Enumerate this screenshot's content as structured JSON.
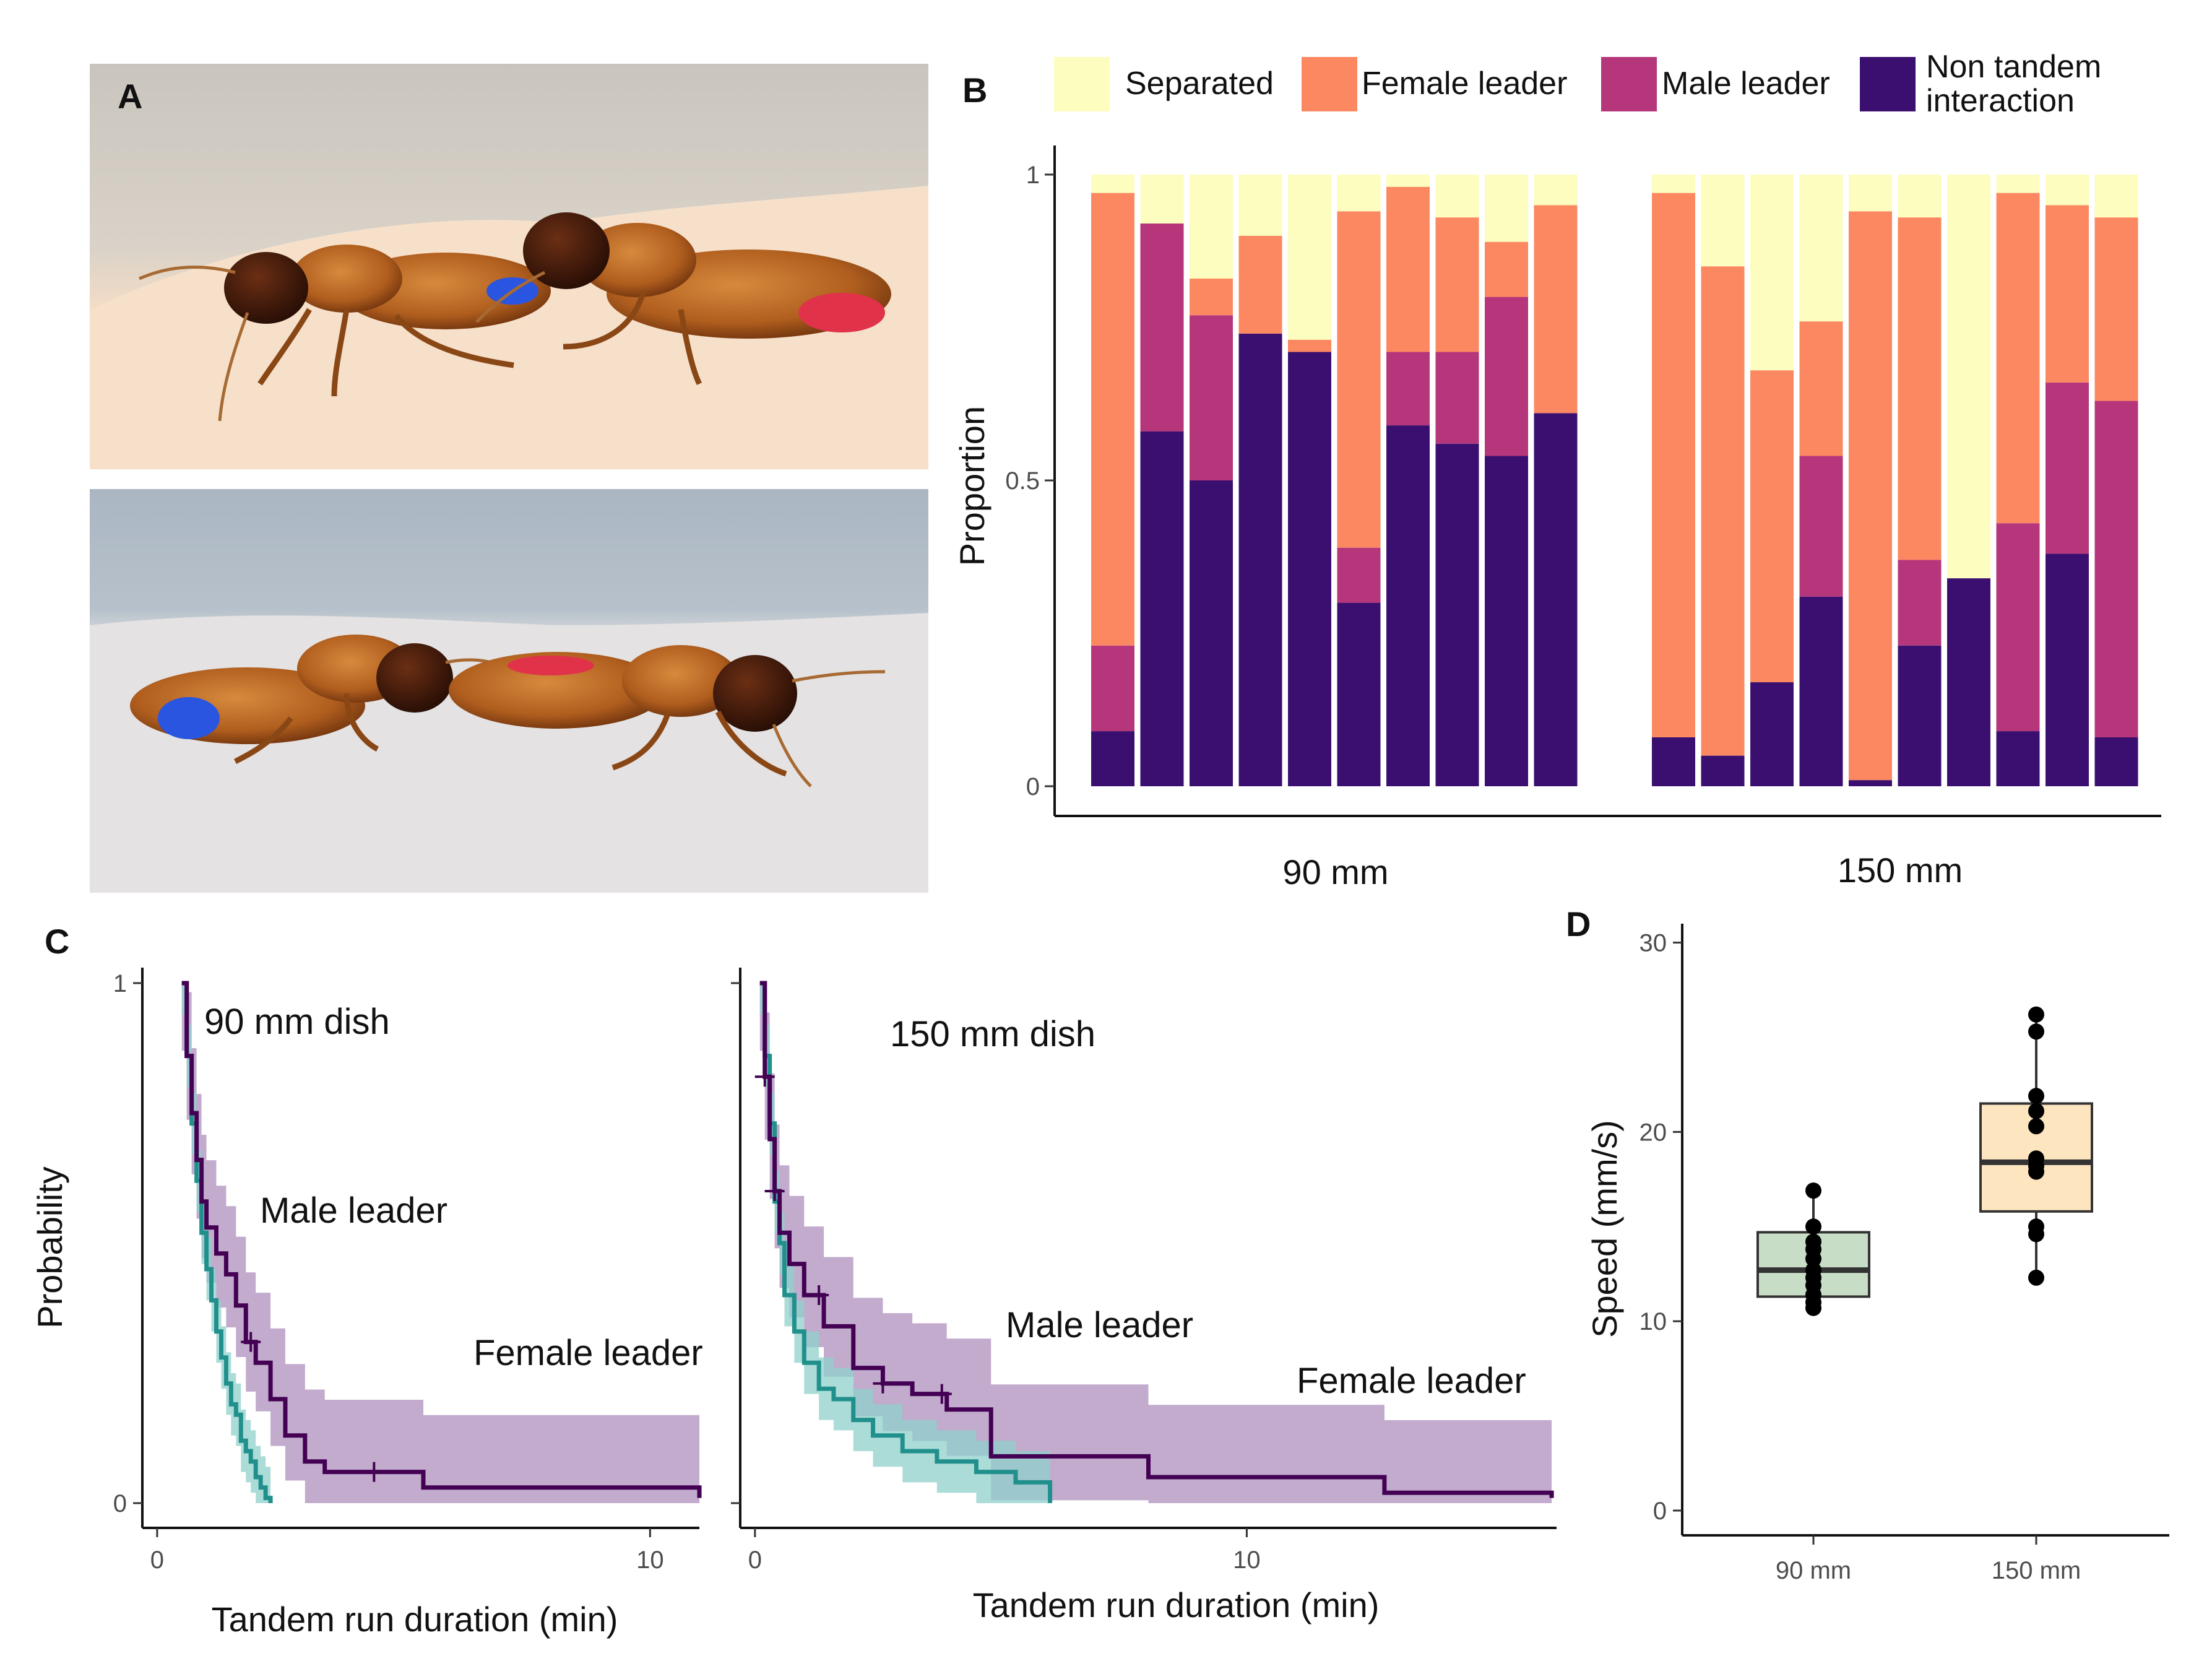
{
  "panels": {
    "A": {
      "letter": "A",
      "photos": [
        "termite-pair-photo",
        "termite-pair-photo"
      ]
    },
    "B": {
      "letter": "B"
    },
    "C": {
      "letter": "C"
    },
    "D": {
      "letter": "D"
    }
  },
  "colors": {
    "separated": "#FCFDBF",
    "female_leader": "#FB8861",
    "male_leader": "#B5367A",
    "non_tandem": "#3B0F70",
    "km_male": "#21908C",
    "km_male_band": "#8FD0CB",
    "km_female": "#440154",
    "km_female_band": "#B79CC4",
    "box_90": "#C7DDC5",
    "box_150": "#FDE5C0"
  },
  "chart_data": [
    {
      "id": "B",
      "type": "bar",
      "stacked": true,
      "ylabel": "Proportion",
      "yticks": [
        "0",
        "0.5",
        "1"
      ],
      "ylim": [
        0,
        1
      ],
      "legend": [
        "Separated",
        "Female leader",
        "Male leader",
        "Non tandem interaction"
      ],
      "legend_lines": [
        [
          "Separated"
        ],
        [
          "Female leader"
        ],
        [
          "Male leader"
        ],
        [
          "Non tandem",
          "interaction"
        ]
      ],
      "groups": [
        "90 mm",
        "150 mm"
      ],
      "series": [
        {
          "name": "Non tandem interaction",
          "values": [
            0.09,
            0.58,
            0.5,
            0.74,
            0.71,
            0.3,
            0.59,
            0.56,
            0.54,
            0.61,
            0.08,
            0.05,
            0.17,
            0.31,
            0.01,
            0.23,
            0.34,
            0.09,
            0.38,
            0.08
          ]
        },
        {
          "name": "Male leader",
          "values": [
            0.14,
            0.34,
            0.27,
            0.0,
            0.0,
            0.09,
            0.12,
            0.15,
            0.26,
            0.0,
            0.0,
            0.0,
            0.0,
            0.23,
            0.0,
            0.14,
            0.0,
            0.34,
            0.28,
            0.55
          ]
        },
        {
          "name": "Female leader",
          "values": [
            0.74,
            0.0,
            0.06,
            0.16,
            0.02,
            0.55,
            0.27,
            0.22,
            0.09,
            0.34,
            0.89,
            0.8,
            0.51,
            0.22,
            0.93,
            0.56,
            0.0,
            0.54,
            0.29,
            0.3
          ]
        },
        {
          "name": "Separated",
          "values": [
            0.03,
            0.08,
            0.17,
            0.1,
            0.27,
            0.06,
            0.02,
            0.07,
            0.11,
            0.05,
            0.03,
            0.15,
            0.32,
            0.24,
            0.06,
            0.07,
            0.66,
            0.03,
            0.05,
            0.07
          ]
        }
      ]
    },
    {
      "id": "C1",
      "type": "line",
      "subtitle": "90 mm dish",
      "xlabel": "Tandem run duration (min)",
      "ylabel": "Probability",
      "xlim": [
        -0.3,
        11
      ],
      "ylim": [
        0,
        1
      ],
      "xticks": [
        "0",
        "10"
      ],
      "yticks": [
        "0",
        "1"
      ],
      "series": [
        {
          "name": "Male leader",
          "x": [
            0.5,
            0.6,
            0.7,
            0.8,
            0.9,
            1.0,
            1.1,
            1.2,
            1.3,
            1.4,
            1.5,
            1.6,
            1.7,
            1.8,
            1.9,
            2.0,
            2.1,
            2.2,
            2.3
          ],
          "y": [
            1.0,
            0.86,
            0.73,
            0.62,
            0.52,
            0.45,
            0.39,
            0.33,
            0.28,
            0.23,
            0.19,
            0.17,
            0.12,
            0.1,
            0.08,
            0.05,
            0.03,
            0.01,
            0.0
          ]
        },
        {
          "name": "Female leader",
          "x": [
            0.5,
            0.6,
            0.7,
            0.8,
            0.9,
            1.0,
            1.2,
            1.4,
            1.6,
            1.8,
            2.0,
            2.3,
            2.6,
            3.0,
            3.4,
            4.5,
            5.4,
            11.0
          ],
          "y": [
            1.0,
            0.86,
            0.75,
            0.66,
            0.58,
            0.53,
            0.48,
            0.44,
            0.38,
            0.31,
            0.27,
            0.2,
            0.13,
            0.08,
            0.06,
            0.06,
            0.03,
            0.01
          ]
        }
      ],
      "censored": [
        {
          "series": "Female leader",
          "x": [
            1.9,
            4.4
          ]
        }
      ]
    },
    {
      "id": "C2",
      "type": "line",
      "subtitle": "150 mm dish",
      "xlabel": "Tandem run duration (min)",
      "ylabel": "Probability",
      "xlim": [
        -0.3,
        16.3
      ],
      "ylim": [
        0,
        1
      ],
      "xticks": [
        "0",
        "10"
      ],
      "series": [
        {
          "name": "Male leader",
          "x": [
            0.1,
            0.2,
            0.3,
            0.4,
            0.5,
            0.6,
            0.8,
            1.0,
            1.3,
            1.6,
            2.0,
            2.4,
            3.0,
            3.7,
            4.5,
            5.3,
            6.0
          ],
          "y": [
            1.0,
            0.86,
            0.73,
            0.58,
            0.5,
            0.4,
            0.33,
            0.27,
            0.22,
            0.2,
            0.16,
            0.13,
            0.1,
            0.08,
            0.06,
            0.04,
            0.0
          ]
        },
        {
          "name": "Female leader",
          "x": [
            0.1,
            0.2,
            0.3,
            0.4,
            0.5,
            0.7,
            1.0,
            1.4,
            2.0,
            2.6,
            3.2,
            3.9,
            4.8,
            8.0,
            12.8,
            16.2
          ],
          "y": [
            1.0,
            0.82,
            0.7,
            0.6,
            0.52,
            0.46,
            0.4,
            0.34,
            0.26,
            0.23,
            0.21,
            0.18,
            0.09,
            0.05,
            0.02,
            0.01
          ]
        }
      ],
      "censored": [
        {
          "series": "Female leader",
          "x": [
            0.2,
            0.4,
            1.3,
            2.6,
            3.8
          ]
        }
      ]
    },
    {
      "id": "D",
      "type": "box",
      "ylabel": "Speed (mm/s)",
      "ylim": [
        0,
        31
      ],
      "yticks": [
        "0",
        "10",
        "20",
        "30"
      ],
      "categories": [
        "90 mm",
        "150 mm"
      ],
      "boxes": [
        {
          "name": "90 mm",
          "min": 10.7,
          "q1": 11.3,
          "median": 12.7,
          "q3": 14.7,
          "max": 16.9,
          "points": [
            10.7,
            11.0,
            11.4,
            11.9,
            12.3,
            12.7,
            13.3,
            13.8,
            14.2,
            15.0,
            16.9
          ]
        },
        {
          "name": "150 mm",
          "min": 12.3,
          "q1": 15.8,
          "median": 18.4,
          "q3": 21.5,
          "max": 26.2,
          "points": [
            12.3,
            14.6,
            15.0,
            17.9,
            18.2,
            18.6,
            20.3,
            21.1,
            21.9,
            25.3,
            26.2
          ]
        }
      ]
    }
  ],
  "annotations": {
    "C1_male": "Male leader",
    "C1_female": "Female leader",
    "C2_male": "Male leader",
    "C2_female": "Female leader"
  }
}
